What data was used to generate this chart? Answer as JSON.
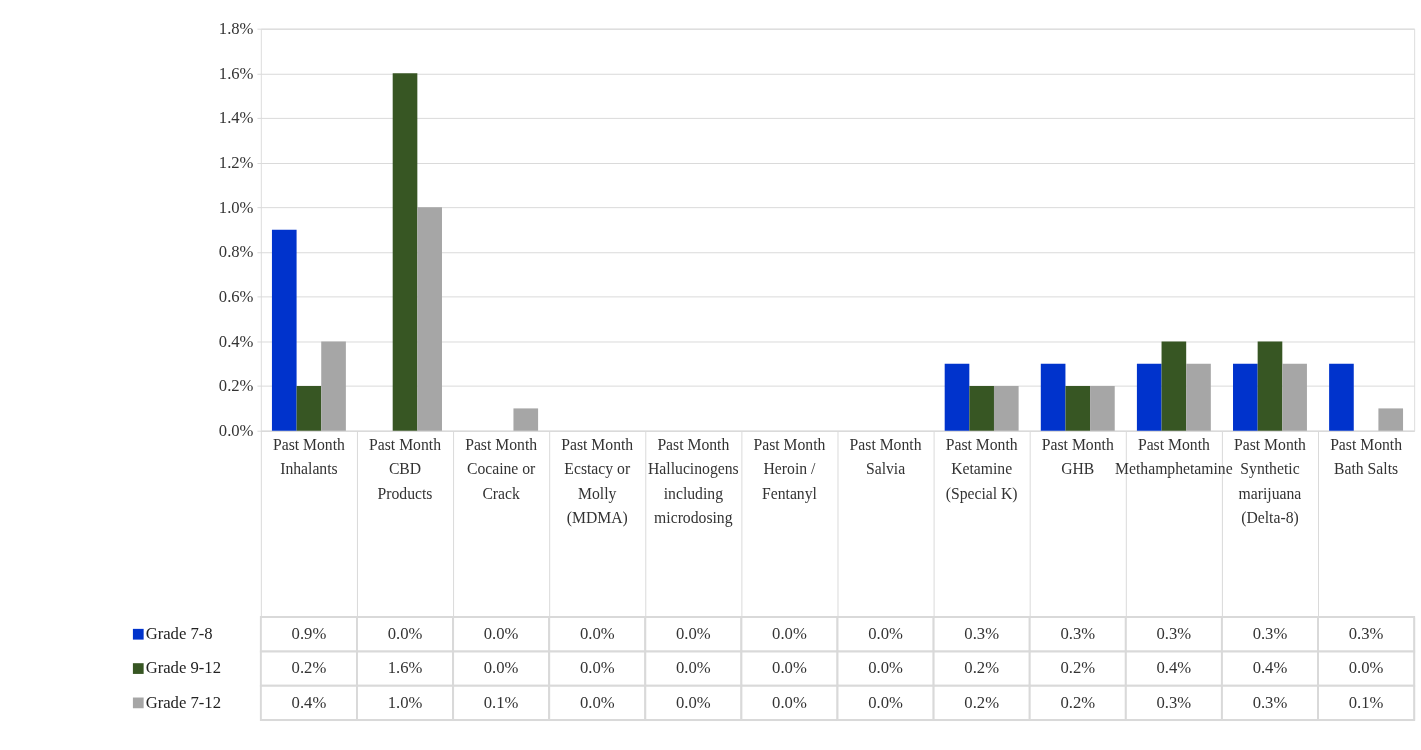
{
  "chart_data": {
    "type": "bar",
    "categories": [
      "Past Month\nInhalants",
      "Past Month\nCBD Products",
      "Past Month\nCocaine or Crack",
      "Past Month\nEcstacy or Molly (MDMA)",
      "Past Month\nHallucinogens including microdosing",
      "Past Month\nHeroin / Fentanyl",
      "Past Month\nSalvia",
      "Past Month\nKetamine (Special K)",
      "Past Month\nGHB",
      "Past Month\nMethamphetamine",
      "Past Month\nSynthetic marijuana (Delta-8)",
      "Past Month\nBath Salts"
    ],
    "series": [
      {
        "name": "Grade  7-8",
        "color": "#0033cc",
        "values": [
          0.9,
          0.0,
          0.0,
          0.0,
          0.0,
          0.0,
          0.0,
          0.3,
          0.3,
          0.3,
          0.3,
          0.3
        ],
        "value_labels": [
          "0.9%",
          "0.0%",
          "0.0%",
          "0.0%",
          "0.0%",
          "0.0%",
          "0.0%",
          "0.3%",
          "0.3%",
          "0.3%",
          "0.3%",
          "0.3%"
        ]
      },
      {
        "name": "Grade  9-12",
        "color": "#375623",
        "values": [
          0.2,
          1.6,
          0.0,
          0.0,
          0.0,
          0.0,
          0.0,
          0.2,
          0.2,
          0.4,
          0.4,
          0.0
        ],
        "value_labels": [
          "0.2%",
          "1.6%",
          "0.0%",
          "0.0%",
          "0.0%",
          "0.0%",
          "0.0%",
          "0.2%",
          "0.2%",
          "0.4%",
          "0.4%",
          "0.0%"
        ]
      },
      {
        "name": "Grade  7-12",
        "color": "#a6a6a6",
        "values": [
          0.4,
          1.0,
          0.1,
          0.0,
          0.0,
          0.0,
          0.0,
          0.2,
          0.2,
          0.3,
          0.3,
          0.1
        ],
        "value_labels": [
          "0.4%",
          "1.0%",
          "0.1%",
          "0.0%",
          "0.0%",
          "0.0%",
          "0.0%",
          "0.2%",
          "0.2%",
          "0.3%",
          "0.3%",
          "0.1%"
        ]
      }
    ],
    "ylim": [
      0,
      1.8
    ],
    "yticks": [
      {
        "value": 0,
        "label": "0.0%"
      },
      {
        "value": 0.2,
        "label": "0.2%"
      },
      {
        "value": 0.4,
        "label": "0.4%"
      },
      {
        "value": 0.6,
        "label": "0.6%"
      },
      {
        "value": 0.8,
        "label": "0.8%"
      },
      {
        "value": 1.0,
        "label": "1.0%"
      },
      {
        "value": 1.2,
        "label": "1.2%"
      },
      {
        "value": 1.4,
        "label": "1.4%"
      },
      {
        "value": 1.6,
        "label": "1.6%"
      },
      {
        "value": 1.8,
        "label": "1.8%"
      }
    ],
    "grid": "y",
    "legend": "bottom"
  }
}
